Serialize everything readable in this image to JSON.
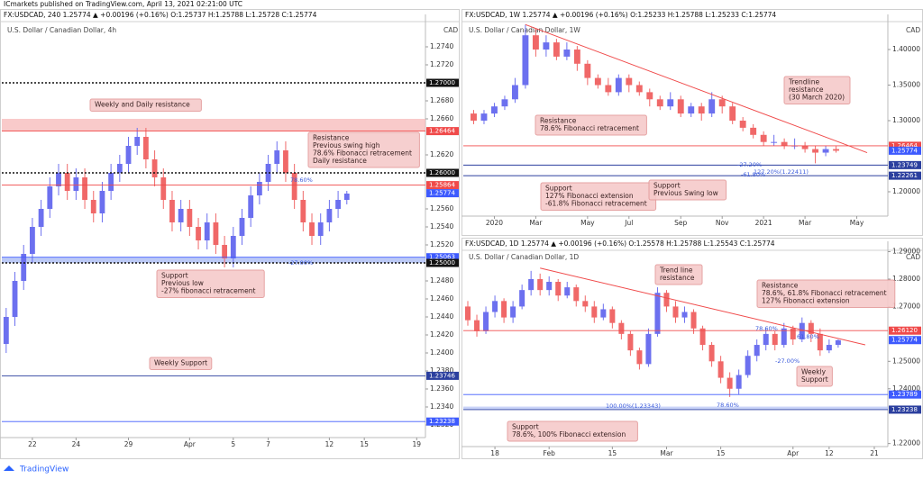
{
  "header": {
    "publisher": "ICmarkets published on TradingView.com, April 13, 2021 02:21:00 UTC"
  },
  "footer": {
    "brand": "TradingView"
  },
  "chart_data": [
    {
      "type": "candlestick",
      "title": "FX:USDCAD, 240  1.25774 ▲ +0.00196 (+0.16%)  O:1.25737  H:1.25788  L:1.25728  C:1.25774",
      "subtitle": "U.S. Dollar / Canadian Dollar, 4h",
      "currency": "CAD",
      "up_color": "#6c70ef",
      "down_color": "#f06868",
      "grid": false,
      "xlim": [
        -0.5,
        48
      ],
      "xticks": [
        {
          "value": 3,
          "label": "22"
        },
        {
          "value": 8,
          "label": "24"
        },
        {
          "value": 14,
          "label": "29"
        },
        {
          "value": 21,
          "label": "Apr"
        },
        {
          "value": 26,
          "label": "5"
        },
        {
          "value": 30,
          "label": "7"
        },
        {
          "value": 37,
          "label": "12"
        },
        {
          "value": 41,
          "label": "15"
        },
        {
          "value": 47,
          "label": "19"
        }
      ],
      "ylim": [
        1.2306,
        1.2766
      ],
      "yticks": [
        {
          "value": 1.232,
          "label": "1.2320"
        },
        {
          "value": 1.234,
          "label": "1.2340"
        },
        {
          "value": 1.236,
          "label": "1.2360"
        },
        {
          "value": 1.238,
          "label": "1.2380"
        },
        {
          "value": 1.24,
          "label": "1.2400"
        },
        {
          "value": 1.242,
          "label": "1.2420"
        },
        {
          "value": 1.244,
          "label": "1.2440"
        },
        {
          "value": 1.246,
          "label": "1.2460"
        },
        {
          "value": 1.248,
          "label": "1.2480"
        },
        {
          "value": 1.252,
          "label": "1.2520"
        },
        {
          "value": 1.254,
          "label": "1.2540"
        },
        {
          "value": 1.256,
          "label": "1.2560"
        },
        {
          "value": 1.262,
          "label": "1.2620"
        },
        {
          "value": 1.266,
          "label": "1.2660"
        },
        {
          "value": 1.268,
          "label": "1.2680"
        },
        {
          "value": 1.272,
          "label": "1.2720"
        },
        {
          "value": 1.274,
          "label": "1.2740"
        }
      ],
      "opens": [
        1.241,
        1.244,
        1.248,
        1.251,
        1.254,
        1.256,
        1.2585,
        1.26,
        1.258,
        1.2595,
        1.257,
        1.2555,
        1.258,
        1.26,
        1.261,
        1.263,
        1.264,
        1.2615,
        1.2595,
        1.257,
        1.2545,
        1.256,
        1.254,
        1.2525,
        1.2545,
        1.252,
        1.2505,
        1.253,
        1.255,
        1.2575,
        1.259,
        1.261,
        1.2625,
        1.26,
        1.257,
        1.2545,
        1.253,
        1.2545,
        1.256,
        1.257
      ],
      "highs": [
        1.245,
        1.249,
        1.252,
        1.255,
        1.257,
        1.2595,
        1.261,
        1.261,
        1.2605,
        1.2605,
        1.258,
        1.259,
        1.261,
        1.262,
        1.264,
        1.265,
        1.265,
        1.2625,
        1.2605,
        1.258,
        1.257,
        1.257,
        1.255,
        1.2555,
        1.2555,
        1.253,
        1.254,
        1.256,
        1.2585,
        1.26,
        1.262,
        1.2635,
        1.2635,
        1.261,
        1.258,
        1.2555,
        1.2555,
        1.257,
        1.258,
        1.258
      ],
      "lows": [
        1.24,
        1.243,
        1.247,
        1.25,
        1.253,
        1.255,
        1.2575,
        1.257,
        1.257,
        1.256,
        1.2545,
        1.2545,
        1.257,
        1.259,
        1.26,
        1.262,
        1.2605,
        1.2585,
        1.256,
        1.2535,
        1.2535,
        1.253,
        1.2515,
        1.2515,
        1.251,
        1.2495,
        1.2495,
        1.252,
        1.254,
        1.2565,
        1.258,
        1.26,
        1.259,
        1.256,
        1.2535,
        1.252,
        1.252,
        1.2535,
        1.255,
        1.2565
      ],
      "closes": [
        1.244,
        1.248,
        1.251,
        1.254,
        1.256,
        1.2585,
        1.26,
        1.258,
        1.2595,
        1.257,
        1.2555,
        1.258,
        1.26,
        1.261,
        1.263,
        1.264,
        1.2615,
        1.2595,
        1.257,
        1.2545,
        1.256,
        1.254,
        1.2525,
        1.2545,
        1.252,
        1.2505,
        1.253,
        1.255,
        1.2575,
        1.259,
        1.261,
        1.2625,
        1.26,
        1.257,
        1.2545,
        1.253,
        1.2545,
        1.256,
        1.257,
        1.2577
      ],
      "zones": [
        {
          "from": 1.26464,
          "to": 1.266,
          "color": "#f7b4b4"
        },
        {
          "from": 1.25,
          "to": 1.25063,
          "color": "#9fb4f2"
        }
      ],
      "levels": [
        {
          "value": 1.27,
          "label": "1.27000",
          "color": "#111111",
          "style": "dotted"
        },
        {
          "value": 1.26464,
          "label": "1.26464",
          "color": "#f04a4a",
          "style": "solid"
        },
        {
          "value": 1.26,
          "label": "1.26000",
          "color": "#111111",
          "style": "dotted"
        },
        {
          "value": 1.25864,
          "label": "1.25864",
          "color": "#f04a4a",
          "style": "solid"
        },
        {
          "value": 1.25774,
          "label": "1.25774",
          "color": "#3d5afe",
          "style": "none"
        },
        {
          "value": 1.25063,
          "label": "1.25063",
          "color": "#3d5afe",
          "style": "solid"
        },
        {
          "value": 1.25,
          "label": "1.25000",
          "color": "#111111",
          "style": "dotted"
        },
        {
          "value": 1.23746,
          "label": "1.23746",
          "color": "#2b3f9e",
          "style": "solid"
        },
        {
          "value": 1.23238,
          "label": "1.23238",
          "color": "#3d5afe",
          "style": "solid"
        }
      ],
      "trendlines": [],
      "annotations": [
        {
          "lines": [
            "Weekly and Daily resistance"
          ]
        },
        {
          "lines": [
            "Resistance",
            "Previous swing high",
            "78.6% Fibonacci retracement",
            "Daily resistance"
          ]
        },
        {
          "lines": [
            "Support",
            "Previous low",
            "-27% fibonacci retracement"
          ]
        },
        {
          "lines": [
            "Weekly Support"
          ]
        }
      ],
      "fib_labels": [
        "78.60%",
        "-27.00%"
      ]
    },
    {
      "type": "candlestick",
      "title": "FX:USDCAD, 1W  1.25774 ▲ +0.00196 (+0.16%)  O:1.25233  H:1.25788  L:1.25233  C:1.25774",
      "subtitle": "U.S. Dollar / Canadian Dollar, 1W",
      "currency": "CAD",
      "up_color": "#6c70ef",
      "down_color": "#f06868",
      "grid": false,
      "xlim": [
        -1,
        40
      ],
      "xticks": [
        {
          "value": 2,
          "label": "2020"
        },
        {
          "value": 6,
          "label": "Mar"
        },
        {
          "value": 11,
          "label": "May"
        },
        {
          "value": 15,
          "label": "Jul"
        },
        {
          "value": 20,
          "label": "Sep"
        },
        {
          "value": 24,
          "label": "Nov"
        },
        {
          "value": 28,
          "label": "2021"
        },
        {
          "value": 32,
          "label": "Mar"
        },
        {
          "value": 37,
          "label": "May"
        }
      ],
      "ylim": [
        1.1658,
        1.4367
      ],
      "yticks": [
        {
          "value": 1.2,
          "label": "1.20000"
        },
        {
          "value": 1.3,
          "label": "1.30000"
        },
        {
          "value": 1.35,
          "label": "1.35000"
        },
        {
          "value": 1.4,
          "label": "1.40000"
        }
      ],
      "opens": [
        1.31,
        1.3,
        1.31,
        1.32,
        1.33,
        1.35,
        1.42,
        1.4,
        1.41,
        1.39,
        1.4,
        1.38,
        1.36,
        1.35,
        1.34,
        1.36,
        1.35,
        1.34,
        1.33,
        1.32,
        1.33,
        1.31,
        1.32,
        1.31,
        1.33,
        1.32,
        1.3,
        1.29,
        1.28,
        1.27,
        1.27,
        1.265,
        1.265,
        1.26,
        1.255,
        1.26
      ],
      "highs": [
        1.315,
        1.315,
        1.325,
        1.335,
        1.36,
        1.435,
        1.43,
        1.42,
        1.415,
        1.41,
        1.405,
        1.385,
        1.365,
        1.36,
        1.365,
        1.365,
        1.355,
        1.345,
        1.335,
        1.34,
        1.335,
        1.325,
        1.325,
        1.34,
        1.335,
        1.325,
        1.305,
        1.295,
        1.285,
        1.28,
        1.275,
        1.275,
        1.27,
        1.265,
        1.265,
        1.264
      ],
      "lows": [
        1.295,
        1.295,
        1.305,
        1.315,
        1.325,
        1.345,
        1.39,
        1.39,
        1.385,
        1.385,
        1.37,
        1.35,
        1.345,
        1.335,
        1.335,
        1.34,
        1.335,
        1.32,
        1.315,
        1.315,
        1.305,
        1.305,
        1.3,
        1.305,
        1.31,
        1.295,
        1.285,
        1.275,
        1.265,
        1.265,
        1.26,
        1.26,
        1.255,
        1.24,
        1.25,
        1.255
      ],
      "closes": [
        1.3,
        1.31,
        1.32,
        1.33,
        1.35,
        1.42,
        1.4,
        1.41,
        1.39,
        1.4,
        1.38,
        1.36,
        1.35,
        1.34,
        1.36,
        1.35,
        1.34,
        1.33,
        1.32,
        1.33,
        1.31,
        1.32,
        1.31,
        1.33,
        1.32,
        1.3,
        1.29,
        1.28,
        1.27,
        1.27,
        1.265,
        1.265,
        1.26,
        1.255,
        1.26,
        1.2577
      ],
      "zones": [],
      "levels": [
        {
          "value": 1.26464,
          "label": "1.26464",
          "color": "#f04a4a",
          "style": "solid"
        },
        {
          "value": 1.25774,
          "label": "1.25774",
          "color": "#3d5afe",
          "style": "none"
        },
        {
          "value": 1.23749,
          "label": "1.23749",
          "color": "#2b3f9e",
          "style": "solid"
        },
        {
          "value": 1.22261,
          "label": "1.22261",
          "color": "#2b3f9e",
          "style": "solid"
        }
      ],
      "trendlines": [
        {
          "from": [
            5,
            1.435
          ],
          "to": [
            38,
            1.255
          ],
          "color": "#f04a4a"
        }
      ],
      "annotations": [
        {
          "lines": [
            "Trendline",
            "resistance",
            "(30 March 2020)"
          ]
        },
        {
          "lines": [
            "Resistance",
            "78.6% Fibonacci retracement"
          ]
        },
        {
          "lines": [
            "Support",
            "127% Fibonacci extension",
            "-61.8% Fibonacci retracement"
          ]
        },
        {
          "lines": [
            "Support",
            "Previous Swing low"
          ]
        }
      ],
      "fib_labels": [
        "-27.20%",
        "127.20%(1.22411)",
        "-61.80%"
      ]
    },
    {
      "type": "candlestick",
      "title": "FX:USDCAD, 1D  1.25774 ▲ +0.00196 (+0.16%)  O:1.25578  H:1.25788  L:1.25543  C:1.25774",
      "subtitle": "U.S. Dollar / Canadian Dollar, 1D",
      "currency": "CAD",
      "up_color": "#6c70ef",
      "down_color": "#f06868",
      "grid": false,
      "xlim": [
        -0.5,
        46.5
      ],
      "xticks": [
        {
          "value": 3,
          "label": "18"
        },
        {
          "value": 9,
          "label": "Feb"
        },
        {
          "value": 16,
          "label": "15"
        },
        {
          "value": 22,
          "label": "Mar"
        },
        {
          "value": 28,
          "label": "15"
        },
        {
          "value": 36,
          "label": "Apr"
        },
        {
          "value": 40,
          "label": "12"
        },
        {
          "value": 45,
          "label": "21"
        }
      ],
      "ylim": [
        1.2189,
        1.2905
      ],
      "yticks": [
        {
          "value": 1.22,
          "label": "1.22000"
        },
        {
          "value": 1.24,
          "label": "1.24000"
        },
        {
          "value": 1.25,
          "label": "1.25000"
        },
        {
          "value": 1.27,
          "label": "1.27000"
        },
        {
          "value": 1.28,
          "label": "1.28000"
        },
        {
          "value": 1.29,
          "label": "1.29000"
        }
      ],
      "opens": [
        1.27,
        1.265,
        1.261,
        1.268,
        1.272,
        1.266,
        1.27,
        1.276,
        1.28,
        1.276,
        1.279,
        1.274,
        1.277,
        1.272,
        1.27,
        1.266,
        1.269,
        1.264,
        1.26,
        1.254,
        1.249,
        1.26,
        1.275,
        1.27,
        1.266,
        1.268,
        1.262,
        1.256,
        1.25,
        1.244,
        1.24,
        1.245,
        1.252,
        1.256,
        1.26,
        1.256,
        1.262,
        1.258,
        1.264,
        1.26,
        1.254,
        1.256
      ],
      "highs": [
        1.272,
        1.267,
        1.27,
        1.274,
        1.273,
        1.272,
        1.278,
        1.283,
        1.282,
        1.281,
        1.28,
        1.279,
        1.278,
        1.274,
        1.272,
        1.271,
        1.27,
        1.265,
        1.261,
        1.255,
        1.262,
        1.277,
        1.276,
        1.272,
        1.27,
        1.269,
        1.263,
        1.257,
        1.252,
        1.246,
        1.247,
        1.254,
        1.258,
        1.262,
        1.261,
        1.264,
        1.263,
        1.266,
        1.265,
        1.262,
        1.258,
        1.258
      ],
      "lows": [
        1.263,
        1.259,
        1.26,
        1.266,
        1.264,
        1.264,
        1.269,
        1.274,
        1.274,
        1.274,
        1.272,
        1.273,
        1.27,
        1.268,
        1.264,
        1.265,
        1.262,
        1.258,
        1.252,
        1.247,
        1.248,
        1.259,
        1.268,
        1.264,
        1.264,
        1.26,
        1.254,
        1.248,
        1.242,
        1.237,
        1.238,
        1.244,
        1.25,
        1.254,
        1.254,
        1.255,
        1.256,
        1.257,
        1.257,
        1.252,
        1.253,
        1.255
      ],
      "closes": [
        1.265,
        1.261,
        1.268,
        1.272,
        1.266,
        1.27,
        1.276,
        1.28,
        1.276,
        1.279,
        1.274,
        1.277,
        1.272,
        1.27,
        1.266,
        1.269,
        1.264,
        1.26,
        1.254,
        1.249,
        1.26,
        1.275,
        1.27,
        1.266,
        1.268,
        1.262,
        1.256,
        1.25,
        1.244,
        1.24,
        1.245,
        1.252,
        1.256,
        1.26,
        1.256,
        1.262,
        1.258,
        1.264,
        1.26,
        1.254,
        1.256,
        1.2577
      ],
      "zones": [
        {
          "from": 1.23238,
          "to": 1.2335,
          "color": "#b3c2f5"
        }
      ],
      "levels": [
        {
          "value": 1.2612,
          "label": "1.26120",
          "color": "#f04a4a",
          "style": "solid"
        },
        {
          "value": 1.25774,
          "label": "1.25774",
          "color": "#3d5afe",
          "style": "none"
        },
        {
          "value": 1.23789,
          "label": "1.23789",
          "color": "#3d5afe",
          "style": "solid"
        },
        {
          "value": 1.23238,
          "label": "1.23238",
          "color": "#2b3f9e",
          "style": "solid"
        }
      ],
      "trendlines": [
        {
          "from": [
            8,
            1.284
          ],
          "to": [
            44,
            1.256
          ],
          "color": "#f04a4a"
        }
      ],
      "annotations": [
        {
          "lines": [
            "Trend line",
            "resistance"
          ]
        },
        {
          "lines": [
            "Resistance",
            "78.6%, 61.8% Fibonacci retracement",
            "127% Fibonacci extension"
          ]
        },
        {
          "lines": [
            "Weekly",
            "Support"
          ]
        },
        {
          "lines": [
            "Support",
            "78.6%, 100% Fibonacci  extension"
          ]
        }
      ],
      "fib_labels": [
        "78.60%",
        "61.80%",
        "-27.00%",
        "78.60%",
        "100.00%(1.23343)"
      ]
    }
  ]
}
